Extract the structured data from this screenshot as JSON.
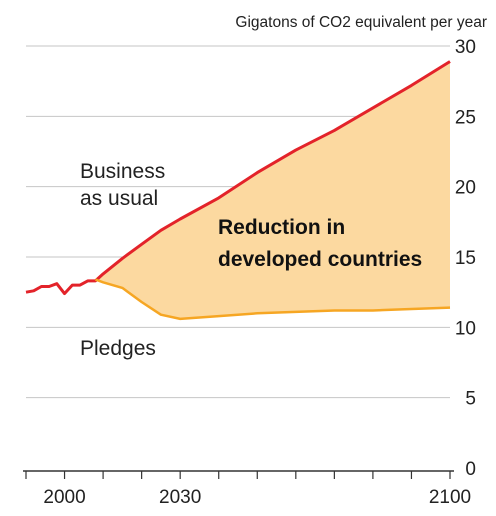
{
  "chart_data": {
    "type": "area",
    "ylabel": "Gigatons of CO2 equivalent per year",
    "xlim": [
      1990,
      2100
    ],
    "ylim": [
      0,
      30
    ],
    "y_ticks": [
      0,
      5,
      10,
      15,
      20,
      25,
      30
    ],
    "x_tick_labels": [
      {
        "label": "2000",
        "value": 2000
      },
      {
        "label": "2030",
        "value": 2030
      },
      {
        "label": "2100",
        "value": 2100
      }
    ],
    "x_minor_ticks": [
      1990,
      2000,
      2010,
      2020,
      2030,
      2040,
      2050,
      2060,
      2070,
      2080,
      2090,
      2100
    ],
    "grid": true,
    "series": [
      {
        "name": "Business as usual",
        "color": "#e3232a",
        "points": [
          [
            1990,
            12.5
          ],
          [
            1992,
            12.6
          ],
          [
            1994,
            12.9
          ],
          [
            1996,
            12.9
          ],
          [
            1998,
            13.1
          ],
          [
            2000,
            12.4
          ],
          [
            2002,
            13.0
          ],
          [
            2004,
            13.0
          ],
          [
            2006,
            13.3
          ],
          [
            2008,
            13.3
          ],
          [
            2010,
            13.8
          ],
          [
            2015,
            14.9
          ],
          [
            2020,
            15.9
          ],
          [
            2025,
            16.9
          ],
          [
            2030,
            17.7
          ],
          [
            2040,
            19.2
          ],
          [
            2050,
            21.0
          ],
          [
            2060,
            22.6
          ],
          [
            2070,
            24.0
          ],
          [
            2080,
            25.6
          ],
          [
            2090,
            27.2
          ],
          [
            2100,
            28.9
          ]
        ]
      },
      {
        "name": "Pledges",
        "color": "#f6a623",
        "points": [
          [
            2008,
            13.4
          ],
          [
            2010,
            13.2
          ],
          [
            2015,
            12.8
          ],
          [
            2020,
            11.8
          ],
          [
            2025,
            10.9
          ],
          [
            2030,
            10.6
          ],
          [
            2040,
            10.8
          ],
          [
            2050,
            11.0
          ],
          [
            2060,
            11.1
          ],
          [
            2070,
            11.2
          ],
          [
            2080,
            11.2
          ],
          [
            2090,
            11.3
          ],
          [
            2100,
            11.4
          ]
        ]
      }
    ],
    "area": {
      "between": [
        "Business as usual",
        "Pledges"
      ],
      "color": "#fcd9a0"
    },
    "annotations": {
      "bau_line1": "Business",
      "bau_line2": "as usual",
      "pledges": "Pledges",
      "gap_line1": "Reduction in",
      "gap_line2": "developed countries"
    }
  }
}
